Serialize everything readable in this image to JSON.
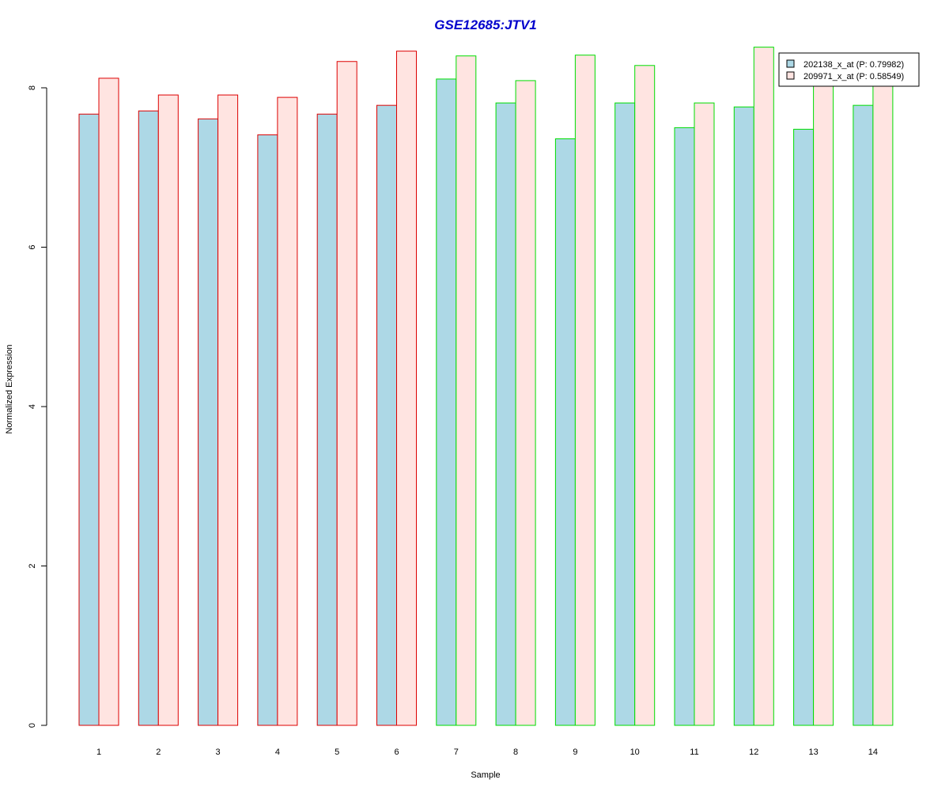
{
  "chart_data": {
    "type": "bar",
    "title": "GSE12685:JTV1",
    "xlabel": "Sample",
    "ylabel": "Normalized Expression",
    "categories": [
      "1",
      "2",
      "3",
      "4",
      "5",
      "6",
      "7",
      "8",
      "9",
      "10",
      "11",
      "12",
      "13",
      "14"
    ],
    "series": [
      {
        "name": "202138_x_at (P: 0.79982)",
        "values": [
          7.67,
          7.71,
          7.61,
          7.41,
          7.67,
          7.78,
          8.11,
          7.81,
          7.36,
          7.81,
          7.5,
          7.76,
          7.48,
          7.78
        ]
      },
      {
        "name": "209971_x_at (P: 0.58549)",
        "values": [
          8.12,
          7.91,
          7.91,
          7.88,
          8.33,
          8.46,
          8.4,
          8.09,
          8.41,
          8.28,
          7.81,
          8.51,
          8.1,
          8.1
        ]
      }
    ],
    "group_of_sample": [
      0,
      0,
      0,
      0,
      0,
      0,
      1,
      1,
      1,
      1,
      1,
      1,
      1,
      1
    ],
    "yticks": [
      0,
      2,
      4,
      6,
      8
    ],
    "ylim": [
      0,
      8.5
    ],
    "grid": false,
    "legend_position": "top-right",
    "colors": {
      "title": "#0000cc",
      "series_fill": [
        "#add8e6",
        "#ffe4e1"
      ],
      "group_border": [
        "#dd0000",
        "#00dd00"
      ],
      "axis": "#000000"
    }
  }
}
